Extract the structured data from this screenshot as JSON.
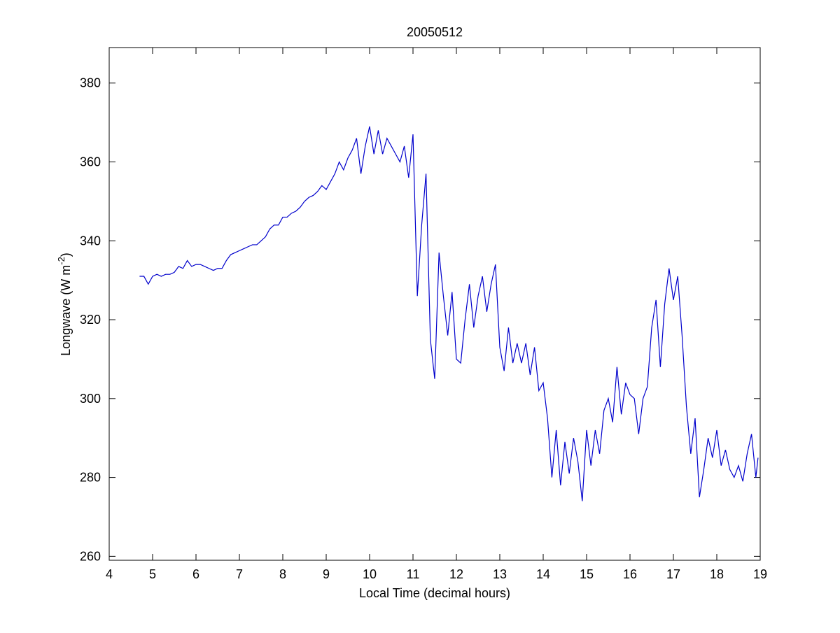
{
  "chart_data": {
    "type": "line",
    "title": "20050512",
    "xlabel": "Local Time (decimal hours)",
    "ylabel": {
      "text": "Longwave (W m",
      "superscript": "-2",
      "suffix": ")"
    },
    "color": "#0000cc",
    "x": [
      4.7,
      4.8,
      4.9,
      5.0,
      5.1,
      5.2,
      5.3,
      5.4,
      5.5,
      5.6,
      5.7,
      5.8,
      5.9,
      6.0,
      6.1,
      6.2,
      6.3,
      6.4,
      6.5,
      6.6,
      6.7,
      6.8,
      6.9,
      7.0,
      7.1,
      7.2,
      7.3,
      7.4,
      7.5,
      7.6,
      7.7,
      7.8,
      7.9,
      8.0,
      8.1,
      8.2,
      8.3,
      8.4,
      8.5,
      8.6,
      8.7,
      8.8,
      8.9,
      9.0,
      9.1,
      9.2,
      9.3,
      9.4,
      9.5,
      9.6,
      9.7,
      9.8,
      9.9,
      10.0,
      10.1,
      10.2,
      10.3,
      10.4,
      10.5,
      10.6,
      10.7,
      10.8,
      10.9,
      11.0,
      11.1,
      11.2,
      11.3,
      11.4,
      11.5,
      11.6,
      11.7,
      11.8,
      11.9,
      12.0,
      12.1,
      12.2,
      12.3,
      12.4,
      12.5,
      12.6,
      12.7,
      12.8,
      12.9,
      13.0,
      13.1,
      13.2,
      13.3,
      13.4,
      13.5,
      13.6,
      13.7,
      13.8,
      13.9,
      14.0,
      14.1,
      14.2,
      14.3,
      14.4,
      14.5,
      14.6,
      14.7,
      14.8,
      14.9,
      15.0,
      15.1,
      15.2,
      15.3,
      15.4,
      15.5,
      15.6,
      15.7,
      15.8,
      15.9,
      16.0,
      16.1,
      16.2,
      16.3,
      16.4,
      16.5,
      16.6,
      16.7,
      16.8,
      16.9,
      17.0,
      17.1,
      17.2,
      17.3,
      17.4,
      17.5,
      17.6,
      17.7,
      17.8,
      17.9,
      18.0,
      18.1,
      18.2,
      18.3,
      18.4,
      18.5,
      18.6,
      18.7,
      18.8,
      18.9,
      18.95
    ],
    "values": [
      331,
      331,
      329,
      331,
      331.5,
      331,
      331.5,
      331.5,
      332,
      333.5,
      333,
      335,
      333.5,
      334,
      334,
      333.5,
      333,
      332.5,
      333,
      333,
      335,
      336.5,
      337,
      337.5,
      338,
      338.5,
      339,
      339,
      340,
      341,
      343,
      344,
      344,
      346,
      346,
      347,
      347.5,
      348.5,
      350,
      351,
      351.5,
      352.5,
      354,
      353,
      355,
      357,
      360,
      358,
      361,
      363,
      366,
      357,
      364,
      369,
      362,
      368,
      362,
      366,
      364,
      362,
      360,
      364,
      356,
      367,
      326,
      344,
      357,
      315,
      305,
      337,
      326,
      316,
      327,
      310,
      309,
      320,
      329,
      318,
      326,
      331,
      322,
      329,
      334,
      313,
      307,
      318,
      309,
      314,
      309,
      314,
      306,
      313,
      302,
      304,
      295,
      280,
      292,
      278,
      289,
      281,
      290,
      284,
      274,
      292,
      283,
      292,
      286,
      297,
      300,
      294,
      308,
      296,
      304,
      301,
      300,
      291,
      300,
      303,
      318,
      325,
      308,
      324,
      333,
      325,
      331,
      316,
      298,
      286,
      295,
      275,
      282,
      290,
      285,
      292,
      283,
      287,
      282,
      280,
      283,
      279,
      286,
      291,
      280,
      285
    ],
    "xlim": [
      4,
      19
    ],
    "xticks": [
      4,
      5,
      6,
      7,
      8,
      9,
      10,
      11,
      12,
      13,
      14,
      15,
      16,
      17,
      18,
      19
    ],
    "ylim": [
      259,
      389
    ],
    "yticks": [
      260,
      280,
      300,
      320,
      340,
      360,
      380
    ]
  }
}
